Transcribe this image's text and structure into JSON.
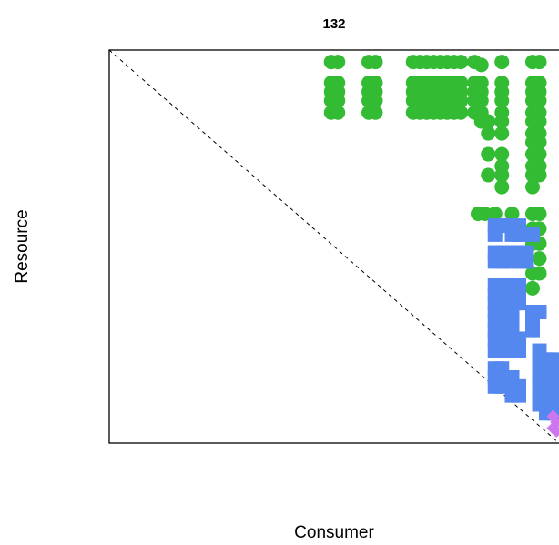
{
  "chart_data": {
    "type": "scatter",
    "title": "132",
    "xlabel": "Consumer",
    "ylabel": "Resource",
    "xlim": [
      0,
      132
    ],
    "ylim": [
      0,
      132
    ],
    "axis_ticks": false,
    "diagonal": "dashed",
    "colors": {
      "green": "#33bb33",
      "blue": "#5588ee",
      "violet": "#cc77ee"
    },
    "series": [
      {
        "color": "green",
        "marker": "circle",
        "points": [
          [
            65,
            128
          ],
          [
            67,
            128
          ],
          [
            76,
            128
          ],
          [
            78,
            128
          ],
          [
            89,
            128
          ],
          [
            91,
            128
          ],
          [
            93,
            128
          ],
          [
            95,
            128
          ],
          [
            97,
            128
          ],
          [
            99,
            128
          ],
          [
            101,
            128
          ],
          [
            103,
            128
          ],
          [
            107,
            128
          ],
          [
            109,
            127
          ],
          [
            115,
            128
          ],
          [
            124,
            128
          ],
          [
            126,
            128
          ],
          [
            65,
            121
          ],
          [
            67,
            121
          ],
          [
            76,
            121
          ],
          [
            78,
            121
          ],
          [
            89,
            121
          ],
          [
            91,
            121
          ],
          [
            93,
            121
          ],
          [
            95,
            121
          ],
          [
            97,
            121
          ],
          [
            99,
            121
          ],
          [
            101,
            121
          ],
          [
            103,
            121
          ],
          [
            107,
            121
          ],
          [
            109,
            121
          ],
          [
            115,
            121
          ],
          [
            124,
            121
          ],
          [
            126,
            121
          ],
          [
            65,
            118
          ],
          [
            67,
            118
          ],
          [
            76,
            118
          ],
          [
            78,
            118
          ],
          [
            89,
            118
          ],
          [
            91,
            118
          ],
          [
            93,
            118
          ],
          [
            95,
            118
          ],
          [
            97,
            118
          ],
          [
            99,
            118
          ],
          [
            101,
            118
          ],
          [
            103,
            118
          ],
          [
            107,
            118
          ],
          [
            109,
            118
          ],
          [
            115,
            118
          ],
          [
            124,
            118
          ],
          [
            126,
            118
          ],
          [
            65,
            115
          ],
          [
            67,
            115
          ],
          [
            76,
            115
          ],
          [
            78,
            115
          ],
          [
            89,
            115
          ],
          [
            91,
            115
          ],
          [
            93,
            115
          ],
          [
            95,
            115
          ],
          [
            97,
            115
          ],
          [
            99,
            115
          ],
          [
            101,
            115
          ],
          [
            103,
            115
          ],
          [
            107,
            115
          ],
          [
            109,
            115
          ],
          [
            115,
            115
          ],
          [
            124,
            115
          ],
          [
            126,
            115
          ],
          [
            65,
            111
          ],
          [
            67,
            111
          ],
          [
            76,
            111
          ],
          [
            78,
            111
          ],
          [
            89,
            111
          ],
          [
            91,
            111
          ],
          [
            93,
            111
          ],
          [
            95,
            111
          ],
          [
            97,
            111
          ],
          [
            99,
            111
          ],
          [
            101,
            111
          ],
          [
            103,
            111
          ],
          [
            107,
            111
          ],
          [
            109,
            111
          ],
          [
            115,
            111
          ],
          [
            124,
            111
          ],
          [
            126,
            111
          ],
          [
            109,
            108
          ],
          [
            111,
            108
          ],
          [
            115,
            108
          ],
          [
            124,
            108
          ],
          [
            126,
            108
          ],
          [
            111,
            104
          ],
          [
            115,
            104
          ],
          [
            124,
            104
          ],
          [
            126,
            104
          ],
          [
            124,
            101
          ],
          [
            126,
            101
          ],
          [
            111,
            97
          ],
          [
            115,
            97
          ],
          [
            124,
            97
          ],
          [
            126,
            97
          ],
          [
            115,
            93
          ],
          [
            124,
            93
          ],
          [
            126,
            93
          ],
          [
            111,
            90
          ],
          [
            115,
            90
          ],
          [
            124,
            90
          ],
          [
            126,
            90
          ],
          [
            115,
            86
          ],
          [
            124,
            86
          ],
          [
            108,
            77
          ],
          [
            110,
            77
          ],
          [
            113,
            77
          ],
          [
            118,
            77
          ],
          [
            124,
            77
          ],
          [
            126,
            77
          ],
          [
            124,
            72
          ],
          [
            126,
            72
          ],
          [
            124,
            67
          ],
          [
            126,
            67
          ],
          [
            126,
            62
          ],
          [
            124,
            57
          ],
          [
            126,
            57
          ],
          [
            124,
            52
          ]
        ]
      },
      {
        "color": "blue",
        "marker": "square",
        "points": [
          [
            113,
            73
          ],
          [
            115,
            73
          ],
          [
            118,
            73
          ],
          [
            120,
            73
          ],
          [
            113,
            70
          ],
          [
            118,
            70
          ],
          [
            120,
            70
          ],
          [
            122,
            70
          ],
          [
            124,
            70
          ],
          [
            113,
            64
          ],
          [
            115,
            64
          ],
          [
            118,
            64
          ],
          [
            120,
            64
          ],
          [
            122,
            64
          ],
          [
            113,
            61
          ],
          [
            115,
            61
          ],
          [
            118,
            61
          ],
          [
            120,
            61
          ],
          [
            122,
            61
          ],
          [
            113,
            53
          ],
          [
            115,
            53
          ],
          [
            118,
            53
          ],
          [
            120,
            53
          ],
          [
            113,
            50
          ],
          [
            115,
            50
          ],
          [
            118,
            50
          ],
          [
            120,
            50
          ],
          [
            113,
            47
          ],
          [
            115,
            47
          ],
          [
            118,
            47
          ],
          [
            120,
            47
          ],
          [
            113,
            44
          ],
          [
            115,
            44
          ],
          [
            118,
            44
          ],
          [
            124,
            44
          ],
          [
            126,
            44
          ],
          [
            113,
            41
          ],
          [
            115,
            41
          ],
          [
            118,
            41
          ],
          [
            124,
            41
          ],
          [
            113,
            38
          ],
          [
            115,
            38
          ],
          [
            118,
            38
          ],
          [
            124,
            38
          ],
          [
            113,
            35
          ],
          [
            115,
            35
          ],
          [
            118,
            35
          ],
          [
            120,
            35
          ],
          [
            113,
            31
          ],
          [
            115,
            31
          ],
          [
            118,
            31
          ],
          [
            120,
            31
          ],
          [
            126,
            31
          ],
          [
            126,
            28
          ],
          [
            128,
            28
          ],
          [
            130,
            28
          ],
          [
            126,
            25
          ],
          [
            128,
            25
          ],
          [
            130,
            25
          ],
          [
            126,
            22
          ],
          [
            128,
            22
          ],
          [
            130,
            22
          ],
          [
            113,
            25
          ],
          [
            115,
            25
          ],
          [
            113,
            22
          ],
          [
            115,
            22
          ],
          [
            118,
            22
          ],
          [
            118,
            19
          ],
          [
            120,
            19
          ],
          [
            113,
            19
          ],
          [
            115,
            19
          ],
          [
            126,
            19
          ],
          [
            128,
            19
          ],
          [
            130,
            19
          ],
          [
            118,
            16
          ],
          [
            120,
            16
          ],
          [
            126,
            16
          ],
          [
            128,
            16
          ],
          [
            130,
            16
          ],
          [
            126,
            13
          ],
          [
            128,
            13
          ],
          [
            130,
            13
          ],
          [
            128,
            10
          ],
          [
            130,
            10
          ]
        ]
      },
      {
        "color": "violet",
        "marker": "diamond",
        "points": [
          [
            130,
            9
          ],
          [
            131,
            7
          ],
          [
            130,
            5
          ],
          [
            131,
            4
          ]
        ]
      }
    ]
  }
}
